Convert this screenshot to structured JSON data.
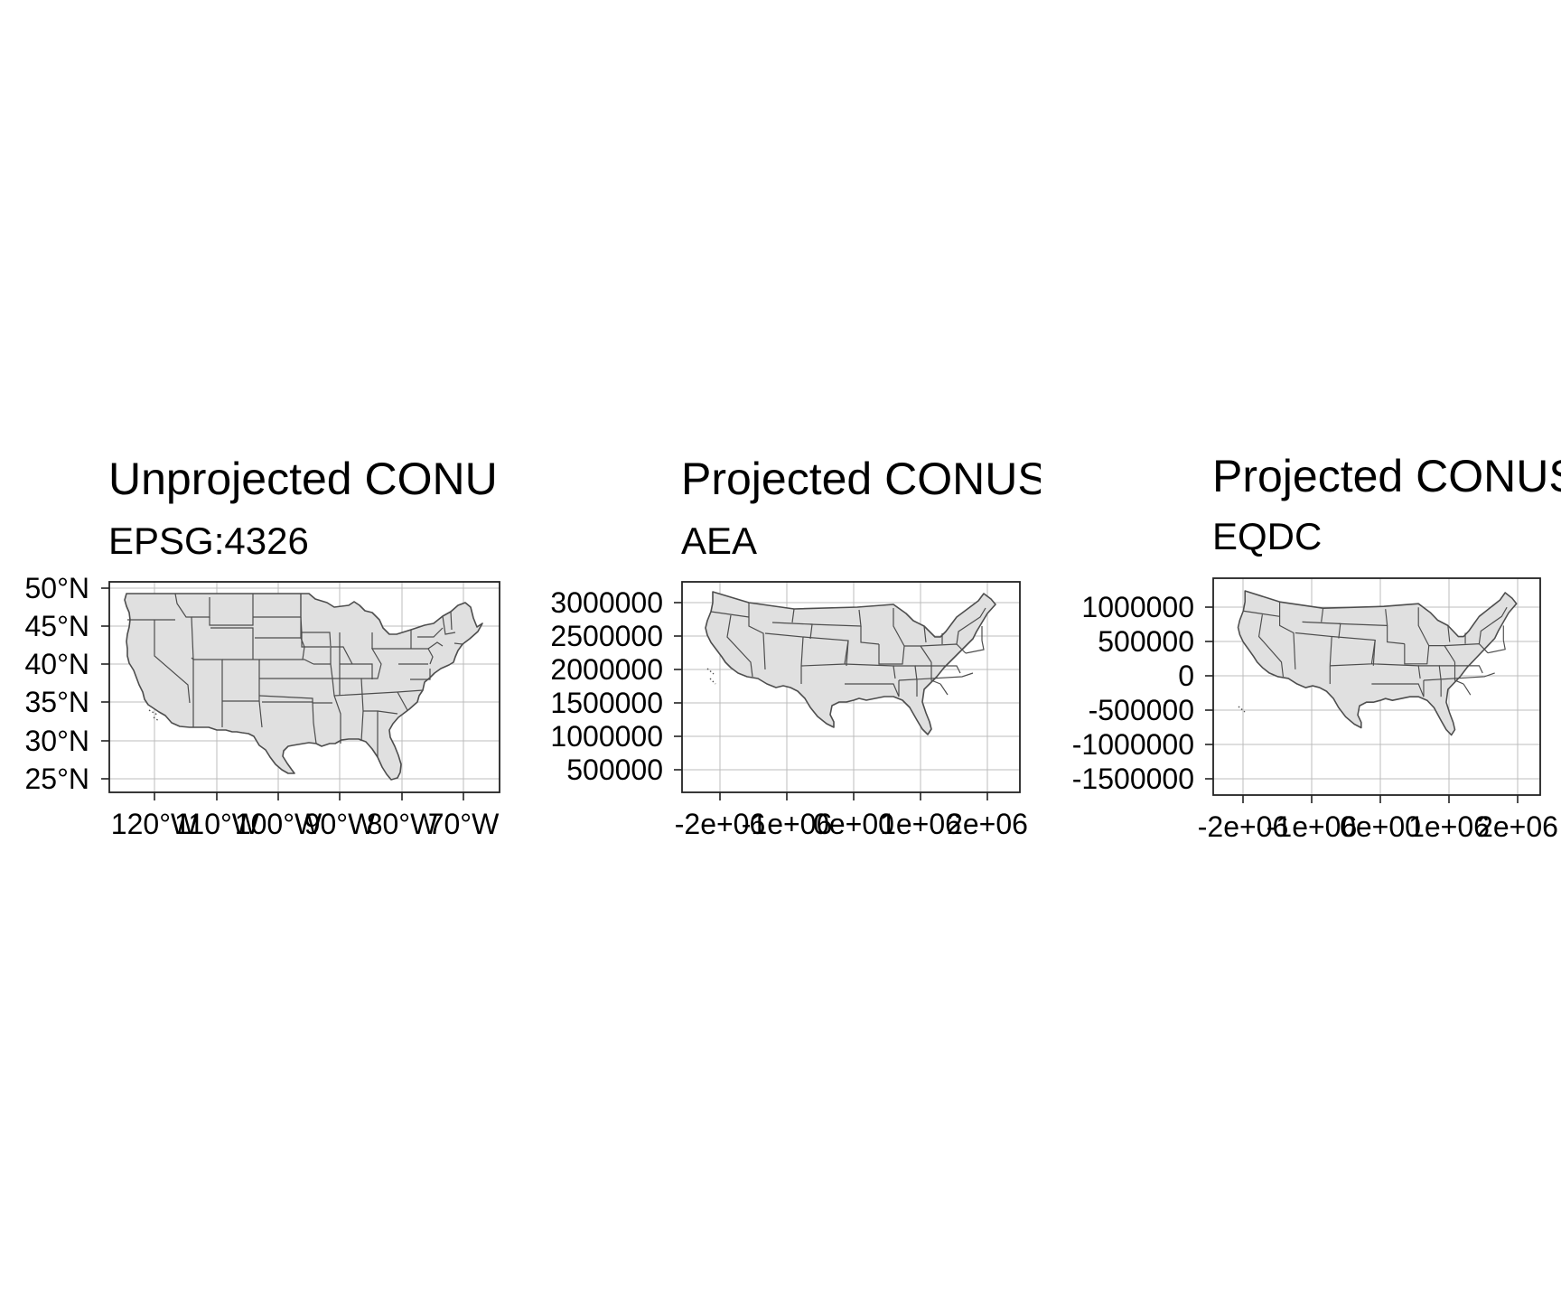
{
  "panels": [
    {
      "id": "unprojected",
      "title": "Unprojected CONU",
      "subtitle": "EPSG:4326",
      "x_ticks": [
        "120°W",
        "110°W",
        "100°W",
        "90°W",
        "80°W",
        "70°W"
      ],
      "y_ticks": [
        "50°N",
        "45°N",
        "40°N",
        "35°N",
        "30°N",
        "25°N"
      ],
      "shape": "plate-carree"
    },
    {
      "id": "aea",
      "title": "Projected CONUS",
      "subtitle": "AEA",
      "x_ticks": [
        "-2e+06",
        "-1e+06",
        "0e+00",
        "1e+06",
        "2e+06"
      ],
      "y_ticks": [
        "3000000",
        "2500000",
        "2000000",
        "1500000",
        "1000000",
        "500000"
      ],
      "shape": "conic"
    },
    {
      "id": "eqdc",
      "title": "Projected CONUS",
      "subtitle": "EQDC",
      "x_ticks": [
        "-2e+06",
        "-1e+06",
        "0e+00",
        "1e+06",
        "2e+06"
      ],
      "y_ticks": [
        "1000000",
        "500000",
        "0",
        "-500000",
        "-1000000",
        "-1500000"
      ],
      "shape": "conic"
    }
  ],
  "colors": {
    "land_fill": "#e0e0e0",
    "state_border": "#4d4d4d",
    "grid": "#bcbcbc",
    "panel_border": "#222222"
  }
}
